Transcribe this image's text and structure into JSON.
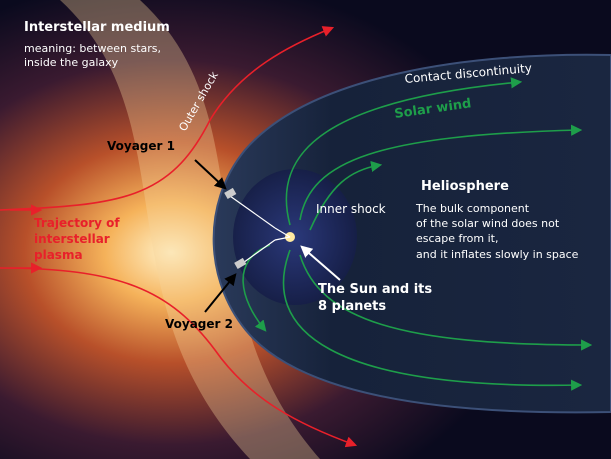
{
  "labels": {
    "interstellar_medium": "Interstellar medium",
    "interstellar_note": [
      "meaning: between stars,",
      "inside the galaxy"
    ],
    "outer_shock": "Outer shock",
    "contact_discontinuity": "Contact discontinuity",
    "solar_wind": "Solar wind",
    "voyager_1": "Voyager 1",
    "voyager_2": "Voyager 2",
    "heliosphere": "Heliosphere",
    "heliosphere_note": [
      "The bulk component",
      "of the solar wind does not",
      "escape from it,",
      "and it inflates slowly  in space"
    ],
    "inner_shock": "Inner shock",
    "trajectory": [
      "Trajectory of",
      "interstellar",
      "plasma"
    ],
    "sun": [
      "The Sun and its",
      "8 planets"
    ]
  }
}
